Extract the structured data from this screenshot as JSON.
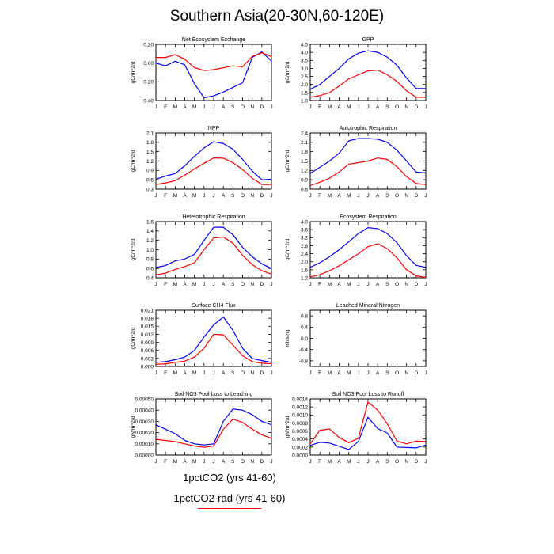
{
  "title": "Southern Asia(20-30N,60-120E)",
  "colors": {
    "blue": "#0000ff",
    "red": "#ff0000"
  },
  "legend": {
    "blue_label": "1pctCO2 (yrs 41-60)",
    "red_label": "1pctCO2-rad (yrs 41-60)"
  },
  "chart_data": [
    {
      "type": "line",
      "title": "Net Ecosystem Exchange",
      "ylabel": "gC/m^2/d",
      "categories": [
        "J",
        "F",
        "M",
        "A",
        "M",
        "J",
        "J",
        "A",
        "S",
        "O",
        "N",
        "D",
        "J"
      ],
      "ylim": [
        -0.4,
        0.2
      ],
      "yticks": [
        "0.20",
        "0.00",
        "-0.20",
        "-0.40"
      ],
      "series": [
        {
          "color": "blue",
          "values": [
            0.0,
            -0.03,
            0.02,
            -0.02,
            -0.22,
            -0.37,
            -0.35,
            -0.31,
            -0.26,
            -0.21,
            0.06,
            0.12,
            0.02
          ]
        },
        {
          "color": "red",
          "values": [
            0.06,
            0.06,
            0.09,
            0.04,
            -0.05,
            -0.08,
            -0.07,
            -0.05,
            -0.03,
            -0.04,
            0.07,
            0.11,
            0.07
          ]
        }
      ]
    },
    {
      "type": "line",
      "title": "GPP",
      "ylabel": "gC/m^2/d",
      "categories": [
        "J",
        "F",
        "M",
        "A",
        "M",
        "J",
        "J",
        "A",
        "S",
        "O",
        "N",
        "D",
        "J"
      ],
      "ylim": [
        1.0,
        4.5
      ],
      "yticks": [
        "4.5",
        "4.0",
        "3.5",
        "3.0",
        "2.5",
        "2.0",
        "1.5",
        "1.0"
      ],
      "series": [
        {
          "color": "blue",
          "values": [
            1.7,
            2.0,
            2.5,
            3.0,
            3.6,
            3.95,
            4.1,
            4.0,
            3.7,
            3.2,
            2.4,
            1.75,
            1.75
          ]
        },
        {
          "color": "red",
          "values": [
            1.2,
            1.3,
            1.5,
            1.9,
            2.35,
            2.6,
            2.85,
            2.9,
            2.6,
            2.2,
            1.6,
            1.2,
            1.2
          ]
        }
      ]
    },
    {
      "type": "line",
      "title": "NPP",
      "ylabel": "gC/m^2/d",
      "categories": [
        "J",
        "F",
        "M",
        "A",
        "M",
        "J",
        "J",
        "A",
        "S",
        "O",
        "N",
        "D",
        "J"
      ],
      "ylim": [
        0.3,
        2.1
      ],
      "yticks": [
        "2.1",
        "1.8",
        "1.5",
        "1.2",
        "0.9",
        "0.6",
        "0.3"
      ],
      "series": [
        {
          "color": "blue",
          "values": [
            0.62,
            0.72,
            0.8,
            1.05,
            1.35,
            1.62,
            1.82,
            1.76,
            1.58,
            1.25,
            0.88,
            0.6,
            0.62
          ]
        },
        {
          "color": "red",
          "values": [
            0.45,
            0.5,
            0.57,
            0.75,
            0.95,
            1.13,
            1.3,
            1.29,
            1.15,
            0.93,
            0.65,
            0.45,
            0.45
          ]
        }
      ]
    },
    {
      "type": "line",
      "title": "Autotrophic Respiration",
      "ylabel": "gC/m^2/d",
      "categories": [
        "J",
        "F",
        "M",
        "A",
        "M",
        "J",
        "J",
        "A",
        "S",
        "O",
        "N",
        "D",
        "J"
      ],
      "ylim": [
        0.6,
        2.4
      ],
      "yticks": [
        "2.4",
        "2.1",
        "1.8",
        "1.5",
        "1.2",
        "0.9",
        "0.6"
      ],
      "series": [
        {
          "color": "blue",
          "values": [
            1.1,
            1.3,
            1.5,
            1.75,
            2.15,
            2.22,
            2.22,
            2.2,
            2.1,
            1.85,
            1.5,
            1.15,
            1.12
          ]
        },
        {
          "color": "red",
          "values": [
            0.72,
            0.82,
            0.95,
            1.15,
            1.4,
            1.45,
            1.5,
            1.6,
            1.55,
            1.32,
            1.0,
            0.78,
            0.75
          ]
        }
      ]
    },
    {
      "type": "line",
      "title": "Heterotrophic Respiration",
      "ylabel": "gC/m^2/d",
      "categories": [
        "J",
        "F",
        "M",
        "A",
        "M",
        "J",
        "J",
        "A",
        "S",
        "O",
        "N",
        "D",
        "J"
      ],
      "ylim": [
        0.4,
        1.6
      ],
      "yticks": [
        "1.6",
        "1.4",
        "1.2",
        "1.0",
        "0.8",
        "0.6",
        "0.4"
      ],
      "series": [
        {
          "color": "blue",
          "values": [
            0.62,
            0.66,
            0.76,
            0.8,
            0.9,
            1.2,
            1.48,
            1.48,
            1.32,
            1.05,
            0.85,
            0.7,
            0.6
          ]
        },
        {
          "color": "red",
          "values": [
            0.46,
            0.5,
            0.58,
            0.64,
            0.72,
            1.0,
            1.25,
            1.27,
            1.14,
            0.88,
            0.68,
            0.55,
            0.48
          ]
        }
      ]
    },
    {
      "type": "line",
      "title": "Ecosystem Respiration",
      "ylabel": "gC/m^2/d",
      "categories": [
        "J",
        "F",
        "M",
        "A",
        "M",
        "J",
        "J",
        "A",
        "S",
        "O",
        "N",
        "D",
        "J"
      ],
      "ylim": [
        1.2,
        4.0
      ],
      "yticks": [
        "4.0",
        "3.6",
        "3.2",
        "2.8",
        "2.4",
        "2.0",
        "1.6",
        "1.2"
      ],
      "series": [
        {
          "color": "blue",
          "values": [
            1.72,
            1.95,
            2.25,
            2.6,
            3.0,
            3.4,
            3.7,
            3.65,
            3.4,
            2.95,
            2.3,
            1.82,
            1.72
          ]
        },
        {
          "color": "red",
          "values": [
            1.25,
            1.35,
            1.55,
            1.8,
            2.1,
            2.4,
            2.75,
            2.9,
            2.65,
            2.2,
            1.6,
            1.3,
            1.22
          ]
        }
      ]
    },
    {
      "type": "line",
      "title": "Surface CH4 Flux",
      "ylabel": "gC/m^2/d",
      "categories": [
        "J",
        "F",
        "M",
        "A",
        "M",
        "J",
        "J",
        "A",
        "S",
        "O",
        "N",
        "D",
        "J"
      ],
      "ylim": [
        0.0,
        0.021
      ],
      "yticks": [
        "0.021",
        "0.018",
        "0.015",
        "0.012",
        "0.009",
        "0.006",
        "0.003",
        "0.000"
      ],
      "series": [
        {
          "color": "blue",
          "values": [
            0.0015,
            0.0018,
            0.0025,
            0.0035,
            0.006,
            0.011,
            0.0155,
            0.0185,
            0.0135,
            0.0068,
            0.003,
            0.0022,
            0.0015
          ]
        },
        {
          "color": "red",
          "values": [
            0.0008,
            0.001,
            0.0015,
            0.002,
            0.0035,
            0.0068,
            0.012,
            0.0118,
            0.008,
            0.004,
            0.0018,
            0.0012,
            0.001
          ]
        }
      ]
    },
    {
      "type": "line",
      "title": "Leached Mineral Nitrogen",
      "ylabel": "missing",
      "categories": [
        "J",
        "F",
        "M",
        "A",
        "M",
        "J",
        "J",
        "A",
        "S",
        "O",
        "N",
        "D",
        "J"
      ],
      "ylim": [
        -1.0,
        1.0
      ],
      "yticks": [
        "0.8",
        "0.4",
        "0.0",
        "-0.4",
        "-0.8"
      ],
      "series": []
    },
    {
      "type": "line",
      "title": "Soil NO3 Pool Loss to Leaching",
      "ylabel": "gN/m^2/d",
      "categories": [
        "J",
        "F",
        "M",
        "A",
        "M",
        "J",
        "J",
        "A",
        "S",
        "O",
        "N",
        "D",
        "J"
      ],
      "ylim": [
        0.0,
        0.0005
      ],
      "yticks": [
        "0.00050",
        "0.00040",
        "0.00030",
        "0.00020",
        "0.00010",
        "0.00000"
      ],
      "series": [
        {
          "color": "blue",
          "values": [
            0.00027,
            0.00023,
            0.00019,
            0.00013,
            0.0001,
            9e-05,
            0.0001,
            0.0003,
            0.00041,
            0.0004,
            0.00036,
            0.0003,
            0.00027
          ]
        },
        {
          "color": "red",
          "values": [
            0.00014,
            0.00013,
            0.00012,
            0.0001,
            8e-05,
            7e-05,
            8e-05,
            0.00023,
            0.00032,
            0.00029,
            0.00023,
            0.00018,
            0.00015
          ]
        }
      ]
    },
    {
      "type": "line",
      "title": "Soil NO3 Pool Loss to Runoff",
      "ylabel": "gN/m^2/d",
      "categories": [
        "J",
        "F",
        "M",
        "A",
        "M",
        "J",
        "J",
        "A",
        "S",
        "O",
        "N",
        "D",
        "J"
      ],
      "ylim": [
        0.0,
        0.0014
      ],
      "yticks": [
        "0.0014",
        "0.0012",
        "0.0010",
        "0.0008",
        "0.0006",
        "0.0004",
        "0.0002",
        "0.0000"
      ],
      "series": [
        {
          "color": "blue",
          "values": [
            0.00024,
            0.00032,
            0.0003,
            0.00022,
            0.00014,
            0.00034,
            0.00094,
            0.00066,
            0.00055,
            0.0002,
            0.00019,
            0.00018,
            0.00025
          ]
        },
        {
          "color": "red",
          "values": [
            0.00028,
            0.00062,
            0.00065,
            0.00044,
            0.00031,
            0.00042,
            0.00132,
            0.00112,
            0.00078,
            0.00035,
            0.00028,
            0.00035,
            0.00034
          ]
        }
      ]
    }
  ]
}
